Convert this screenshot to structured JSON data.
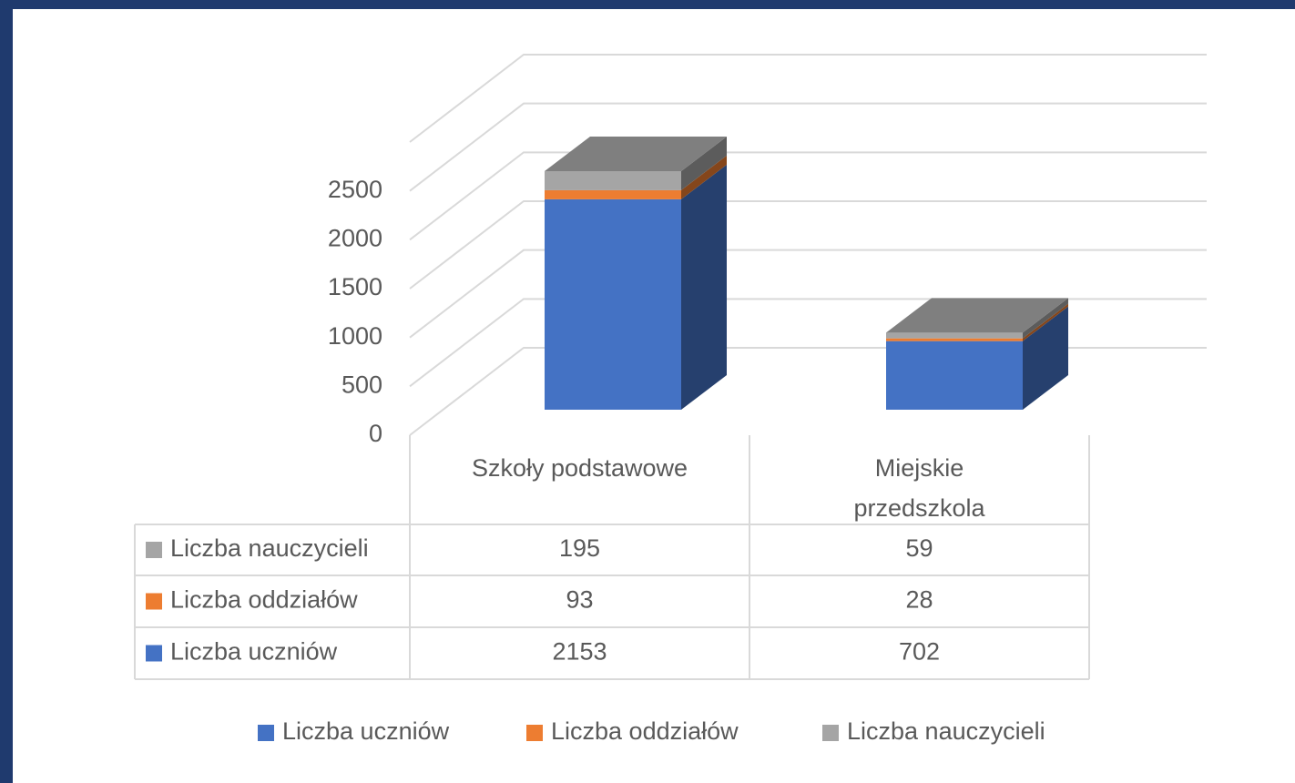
{
  "chart_data": {
    "type": "bar3d_stacked",
    "categories": [
      "Szkoły podstawowe",
      "Miejskie przedszkola"
    ],
    "series": [
      {
        "name": "Liczba uczniów",
        "color": "#4472c4",
        "values": [
          2153,
          702
        ]
      },
      {
        "name": "Liczba oddziałów",
        "color": "#ed7d31",
        "values": [
          93,
          28
        ]
      },
      {
        "name": "Liczba nauczycieli",
        "color": "#a5a5a5",
        "values": [
          195,
          59
        ]
      }
    ],
    "ylim": [
      0,
      3000
    ],
    "yticks": [
      0,
      500,
      1000,
      1500,
      2000,
      2500
    ],
    "grid": true,
    "legend": "bottom",
    "data_table": true
  }
}
